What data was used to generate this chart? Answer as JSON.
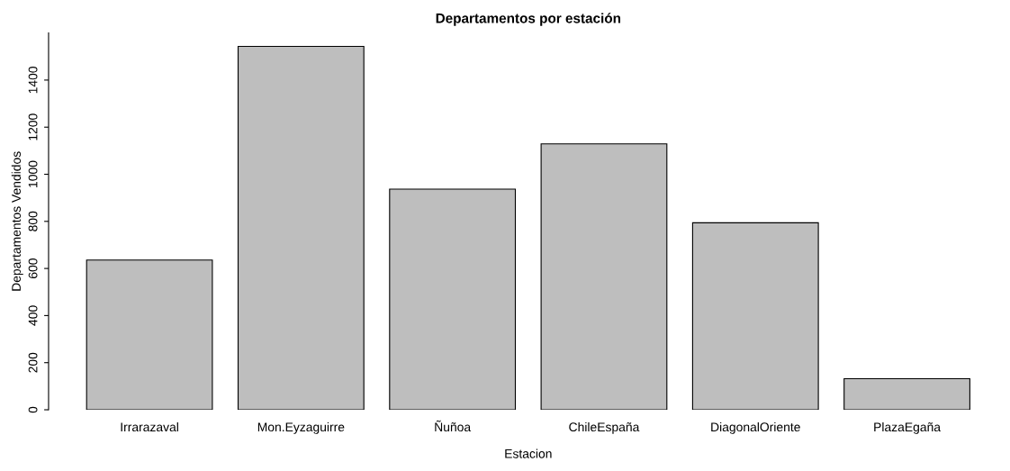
{
  "chart_data": {
    "type": "bar",
    "title": "Departamentos por estación",
    "xlabel": "Estacion",
    "ylabel": "Departamentos Vendidos",
    "categories": [
      "Irrarazaval",
      "Mon.Eyzaguirre",
      "Ñuñoa",
      "ChileEspaña",
      "DiagonalOriente",
      "PlazaEgaña"
    ],
    "values": [
      636,
      1543,
      937,
      1129,
      794,
      132
    ],
    "color": "#bebebe",
    "ylim": [
      0,
      1600
    ],
    "yticks": [
      0,
      200,
      400,
      600,
      800,
      1000,
      1200,
      1400
    ],
    "grid": false,
    "legend": false
  }
}
